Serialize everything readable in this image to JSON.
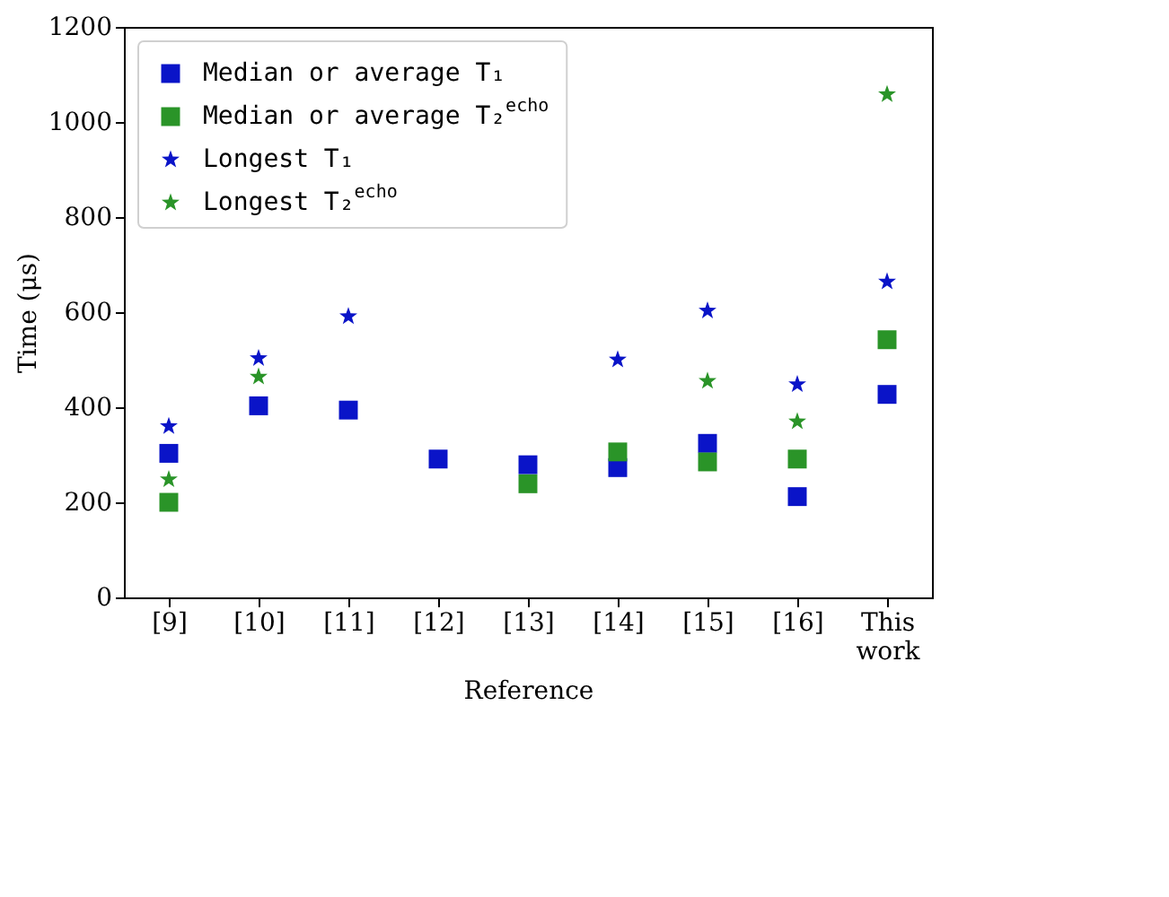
{
  "chart_data": {
    "type": "scatter",
    "xlabel": "Reference",
    "ylabel": "Time (μs)",
    "categories": [
      "[9]",
      "[10]",
      "[11]",
      "[12]",
      "[13]",
      "[14]",
      "[15]",
      "[16]",
      "This work"
    ],
    "ylim": [
      0,
      1200
    ],
    "yticks": [
      0,
      200,
      400,
      600,
      800,
      1000,
      1200
    ],
    "grid": false,
    "legend": "top left",
    "series": [
      {
        "name": "Median or average T₁",
        "color": "#0a14c8",
        "marker": "square",
        "values": [
          303,
          403,
          394,
          291,
          279,
          273,
          324,
          212,
          427
        ]
      },
      {
        "name": "Median or average T₂$^{echo}$",
        "color": "#2a9428",
        "marker": "square",
        "values": [
          200,
          null,
          null,
          null,
          239,
          306,
          285,
          291,
          542
        ]
      },
      {
        "name": "Longest T₁",
        "color": "#0a14c8",
        "marker": "star",
        "values": [
          360,
          503,
          591,
          null,
          null,
          500,
          603,
          448,
          664
        ]
      },
      {
        "name": "Longest T₂$^{echo}$",
        "color": "#2a9428",
        "marker": "star",
        "values": [
          248,
          464,
          null,
          null,
          null,
          null,
          455,
          370,
          1058
        ]
      }
    ]
  }
}
